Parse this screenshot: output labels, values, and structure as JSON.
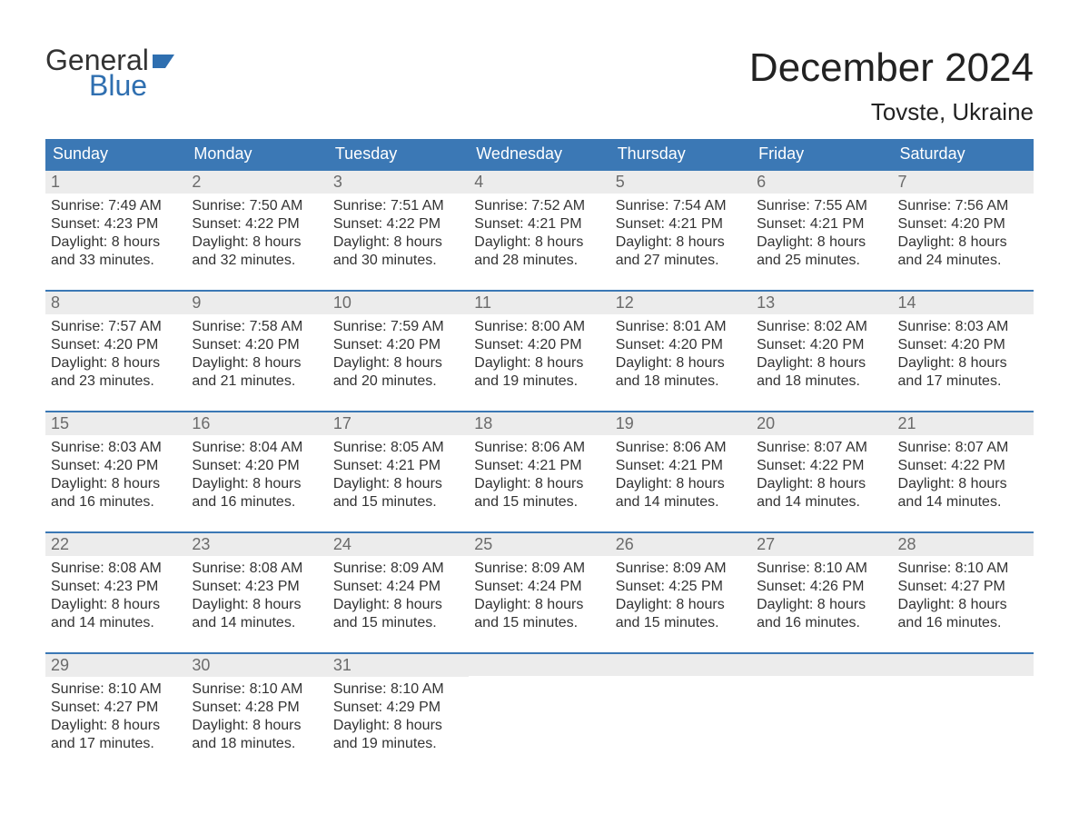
{
  "logo": {
    "word1": "General",
    "word2": "Blue",
    "color_general": "#333333",
    "color_blue": "#2f6fb0",
    "flag_color": "#2f6fb0"
  },
  "header": {
    "title": "December 2024",
    "location": "Tovste, Ukraine"
  },
  "style": {
    "header_bg": "#3b78b5",
    "header_text": "#ffffff",
    "daynum_bg": "#ececec",
    "daynum_color": "#6b6b6b",
    "body_text": "#333333",
    "week_border": "#3b78b5",
    "page_bg": "#ffffff"
  },
  "days_of_week": [
    "Sunday",
    "Monday",
    "Tuesday",
    "Wednesday",
    "Thursday",
    "Friday",
    "Saturday"
  ],
  "weeks": [
    [
      {
        "n": "1",
        "sunrise": "Sunrise: 7:49 AM",
        "sunset": "Sunset: 4:23 PM",
        "dl1": "Daylight: 8 hours",
        "dl2": "and 33 minutes."
      },
      {
        "n": "2",
        "sunrise": "Sunrise: 7:50 AM",
        "sunset": "Sunset: 4:22 PM",
        "dl1": "Daylight: 8 hours",
        "dl2": "and 32 minutes."
      },
      {
        "n": "3",
        "sunrise": "Sunrise: 7:51 AM",
        "sunset": "Sunset: 4:22 PM",
        "dl1": "Daylight: 8 hours",
        "dl2": "and 30 minutes."
      },
      {
        "n": "4",
        "sunrise": "Sunrise: 7:52 AM",
        "sunset": "Sunset: 4:21 PM",
        "dl1": "Daylight: 8 hours",
        "dl2": "and 28 minutes."
      },
      {
        "n": "5",
        "sunrise": "Sunrise: 7:54 AM",
        "sunset": "Sunset: 4:21 PM",
        "dl1": "Daylight: 8 hours",
        "dl2": "and 27 minutes."
      },
      {
        "n": "6",
        "sunrise": "Sunrise: 7:55 AM",
        "sunset": "Sunset: 4:21 PM",
        "dl1": "Daylight: 8 hours",
        "dl2": "and 25 minutes."
      },
      {
        "n": "7",
        "sunrise": "Sunrise: 7:56 AM",
        "sunset": "Sunset: 4:20 PM",
        "dl1": "Daylight: 8 hours",
        "dl2": "and 24 minutes."
      }
    ],
    [
      {
        "n": "8",
        "sunrise": "Sunrise: 7:57 AM",
        "sunset": "Sunset: 4:20 PM",
        "dl1": "Daylight: 8 hours",
        "dl2": "and 23 minutes."
      },
      {
        "n": "9",
        "sunrise": "Sunrise: 7:58 AM",
        "sunset": "Sunset: 4:20 PM",
        "dl1": "Daylight: 8 hours",
        "dl2": "and 21 minutes."
      },
      {
        "n": "10",
        "sunrise": "Sunrise: 7:59 AM",
        "sunset": "Sunset: 4:20 PM",
        "dl1": "Daylight: 8 hours",
        "dl2": "and 20 minutes."
      },
      {
        "n": "11",
        "sunrise": "Sunrise: 8:00 AM",
        "sunset": "Sunset: 4:20 PM",
        "dl1": "Daylight: 8 hours",
        "dl2": "and 19 minutes."
      },
      {
        "n": "12",
        "sunrise": "Sunrise: 8:01 AM",
        "sunset": "Sunset: 4:20 PM",
        "dl1": "Daylight: 8 hours",
        "dl2": "and 18 minutes."
      },
      {
        "n": "13",
        "sunrise": "Sunrise: 8:02 AM",
        "sunset": "Sunset: 4:20 PM",
        "dl1": "Daylight: 8 hours",
        "dl2": "and 18 minutes."
      },
      {
        "n": "14",
        "sunrise": "Sunrise: 8:03 AM",
        "sunset": "Sunset: 4:20 PM",
        "dl1": "Daylight: 8 hours",
        "dl2": "and 17 minutes."
      }
    ],
    [
      {
        "n": "15",
        "sunrise": "Sunrise: 8:03 AM",
        "sunset": "Sunset: 4:20 PM",
        "dl1": "Daylight: 8 hours",
        "dl2": "and 16 minutes."
      },
      {
        "n": "16",
        "sunrise": "Sunrise: 8:04 AM",
        "sunset": "Sunset: 4:20 PM",
        "dl1": "Daylight: 8 hours",
        "dl2": "and 16 minutes."
      },
      {
        "n": "17",
        "sunrise": "Sunrise: 8:05 AM",
        "sunset": "Sunset: 4:21 PM",
        "dl1": "Daylight: 8 hours",
        "dl2": "and 15 minutes."
      },
      {
        "n": "18",
        "sunrise": "Sunrise: 8:06 AM",
        "sunset": "Sunset: 4:21 PM",
        "dl1": "Daylight: 8 hours",
        "dl2": "and 15 minutes."
      },
      {
        "n": "19",
        "sunrise": "Sunrise: 8:06 AM",
        "sunset": "Sunset: 4:21 PM",
        "dl1": "Daylight: 8 hours",
        "dl2": "and 14 minutes."
      },
      {
        "n": "20",
        "sunrise": "Sunrise: 8:07 AM",
        "sunset": "Sunset: 4:22 PM",
        "dl1": "Daylight: 8 hours",
        "dl2": "and 14 minutes."
      },
      {
        "n": "21",
        "sunrise": "Sunrise: 8:07 AM",
        "sunset": "Sunset: 4:22 PM",
        "dl1": "Daylight: 8 hours",
        "dl2": "and 14 minutes."
      }
    ],
    [
      {
        "n": "22",
        "sunrise": "Sunrise: 8:08 AM",
        "sunset": "Sunset: 4:23 PM",
        "dl1": "Daylight: 8 hours",
        "dl2": "and 14 minutes."
      },
      {
        "n": "23",
        "sunrise": "Sunrise: 8:08 AM",
        "sunset": "Sunset: 4:23 PM",
        "dl1": "Daylight: 8 hours",
        "dl2": "and 14 minutes."
      },
      {
        "n": "24",
        "sunrise": "Sunrise: 8:09 AM",
        "sunset": "Sunset: 4:24 PM",
        "dl1": "Daylight: 8 hours",
        "dl2": "and 15 minutes."
      },
      {
        "n": "25",
        "sunrise": "Sunrise: 8:09 AM",
        "sunset": "Sunset: 4:24 PM",
        "dl1": "Daylight: 8 hours",
        "dl2": "and 15 minutes."
      },
      {
        "n": "26",
        "sunrise": "Sunrise: 8:09 AM",
        "sunset": "Sunset: 4:25 PM",
        "dl1": "Daylight: 8 hours",
        "dl2": "and 15 minutes."
      },
      {
        "n": "27",
        "sunrise": "Sunrise: 8:10 AM",
        "sunset": "Sunset: 4:26 PM",
        "dl1": "Daylight: 8 hours",
        "dl2": "and 16 minutes."
      },
      {
        "n": "28",
        "sunrise": "Sunrise: 8:10 AM",
        "sunset": "Sunset: 4:27 PM",
        "dl1": "Daylight: 8 hours",
        "dl2": "and 16 minutes."
      }
    ],
    [
      {
        "n": "29",
        "sunrise": "Sunrise: 8:10 AM",
        "sunset": "Sunset: 4:27 PM",
        "dl1": "Daylight: 8 hours",
        "dl2": "and 17 minutes."
      },
      {
        "n": "30",
        "sunrise": "Sunrise: 8:10 AM",
        "sunset": "Sunset: 4:28 PM",
        "dl1": "Daylight: 8 hours",
        "dl2": "and 18 minutes."
      },
      {
        "n": "31",
        "sunrise": "Sunrise: 8:10 AM",
        "sunset": "Sunset: 4:29 PM",
        "dl1": "Daylight: 8 hours",
        "dl2": "and 19 minutes."
      },
      {
        "empty": true
      },
      {
        "empty": true
      },
      {
        "empty": true
      },
      {
        "empty": true
      }
    ]
  ]
}
